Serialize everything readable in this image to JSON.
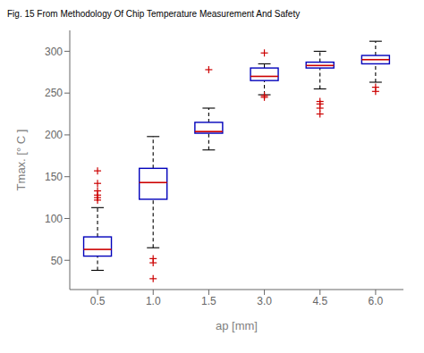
{
  "chart_data": {
    "type": "box",
    "title": "Fig. 15 From Methodology Of Chip Temperature Measurement And Safety",
    "x_label": "ap [mm]",
    "y_label": "Tmax. [° C ]",
    "categories": [
      "0.5",
      "1.0",
      "1.5",
      "3.0",
      "4.5",
      "6.0"
    ],
    "boxes": [
      {
        "q1": 55,
        "median": 63,
        "q3": 78,
        "whislo": 38,
        "whishi": 113,
        "fliers": [
          122,
          125,
          128,
          133,
          142,
          157
        ]
      },
      {
        "q1": 123,
        "median": 143,
        "q3": 160,
        "whislo": 65,
        "whishi": 198,
        "fliers": [
          28,
          47,
          52
        ]
      },
      {
        "q1": 202,
        "median": 204,
        "q3": 215,
        "whislo": 182,
        "whishi": 232,
        "fliers": [
          278
        ]
      },
      {
        "q1": 265,
        "median": 270,
        "q3": 280,
        "whislo": 248,
        "whishi": 285,
        "fliers": [
          298,
          245,
          247
        ]
      },
      {
        "q1": 280,
        "median": 283,
        "q3": 287,
        "whislo": 255,
        "whishi": 300,
        "fliers": [
          225,
          232,
          237,
          240
        ]
      },
      {
        "q1": 285,
        "median": 290,
        "q3": 295,
        "whislo": 263,
        "whishi": 312,
        "fliers": [
          252,
          257
        ]
      }
    ],
    "color": {
      "box": "#0000bb",
      "median": "#cc0000",
      "whisker": "#000000",
      "flier": "#cc0000"
    },
    "ylim": [
      15,
      325
    ],
    "yticks": [
      50,
      100,
      150,
      200,
      250,
      300
    ],
    "grid": false
  }
}
